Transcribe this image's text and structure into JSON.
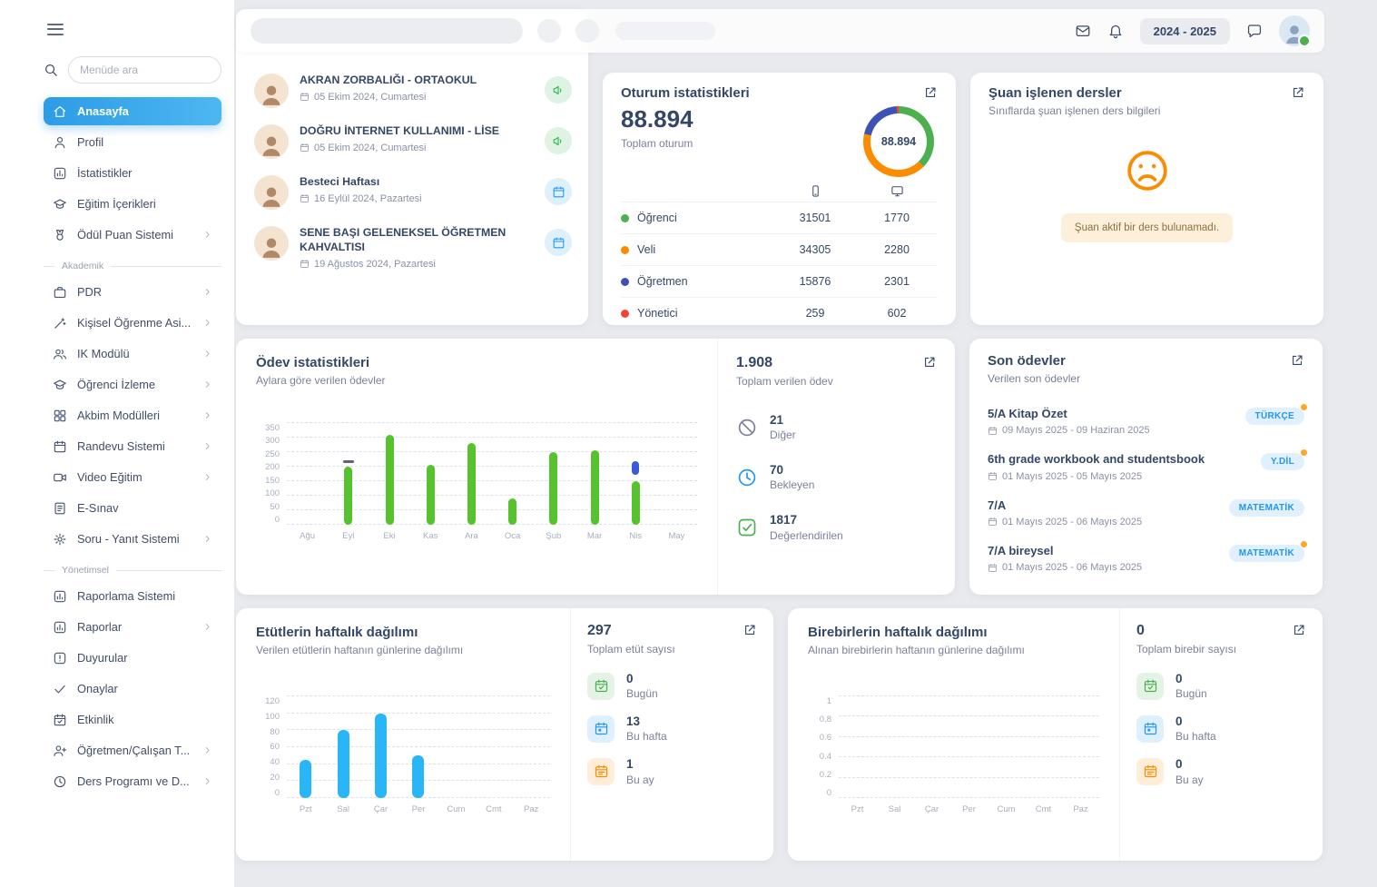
{
  "header": {
    "school_year": "2024 - 2025"
  },
  "sidebar": {
    "search_placeholder": "Menüde ara",
    "sections": [
      {
        "label": null,
        "items": [
          {
            "label": "Anasayfa",
            "icon": "home",
            "active": true
          },
          {
            "label": "Profil",
            "icon": "user"
          },
          {
            "label": "İstatistikler",
            "icon": "chart"
          },
          {
            "label": "Eğitim İçerikleri",
            "icon": "graduation"
          },
          {
            "label": "Ödül Puan Sistemi",
            "icon": "medal",
            "arrow": true
          }
        ]
      },
      {
        "label": "Akademik",
        "items": [
          {
            "label": "PDR",
            "icon": "briefcase",
            "arrow": true
          },
          {
            "label": "Kişisel Öğrenme Asi...",
            "icon": "wand",
            "arrow": true
          },
          {
            "label": "IK Modülü",
            "icon": "users",
            "arrow": true
          },
          {
            "label": "Öğrenci İzleme",
            "icon": "graduation",
            "arrow": true
          },
          {
            "label": "Akbim Modülleri",
            "icon": "grid",
            "arrow": true
          },
          {
            "label": "Randevu Sistemi",
            "icon": "calendar",
            "arrow": true
          },
          {
            "label": "Video Eğitim",
            "icon": "video",
            "arrow": true
          },
          {
            "label": "E-Sınav",
            "icon": "doc"
          },
          {
            "label": "Soru - Yanıt Sistemi",
            "icon": "gear",
            "arrow": true
          }
        ]
      },
      {
        "label": "Yönetimsel",
        "items": [
          {
            "label": "Raporlama Sistemi",
            "icon": "chart"
          },
          {
            "label": "Raporlar",
            "icon": "chart",
            "arrow": true
          },
          {
            "label": "Duyurular",
            "icon": "alert"
          },
          {
            "label": "Onaylar",
            "icon": "check"
          },
          {
            "label": "Etkinlik",
            "icon": "calendar-check"
          },
          {
            "label": "Öğretmen/Çalışan T...",
            "icon": "user-plus",
            "arrow": true
          },
          {
            "label": "Ders Programı ve D...",
            "icon": "clock",
            "arrow": true
          }
        ]
      }
    ]
  },
  "events": {
    "items": [
      {
        "title": "AKRAN ZORBALIĞI - ORTAOKUL",
        "date": "05 Ekim 2024, Cumartesi",
        "kind": "announcement"
      },
      {
        "title": "DOĞRU İNTERNET KULLANIMI - LİSE",
        "date": "05 Ekim 2024, Cumartesi",
        "kind": "announcement"
      },
      {
        "title": "Besteci Haftası",
        "date": "16 Eylül 2024, Pazartesi",
        "kind": "event"
      },
      {
        "title": "SENE BAŞI GELENEKSEL ÖĞRETMEN KAHVALTISI",
        "date": "19 Ağustos 2024, Pazartesi",
        "kind": "event"
      }
    ]
  },
  "session": {
    "title": "Oturum istatistikleri",
    "total": "88.894",
    "total_label": "Toplam oturum",
    "donut_center": "88.894",
    "rows": [
      {
        "label": "Öğrenci",
        "color": "#4caf50",
        "mobile": "31501",
        "web": "1770"
      },
      {
        "label": "Veli",
        "color": "#fb8c00",
        "mobile": "34305",
        "web": "2280"
      },
      {
        "label": "Öğretmen",
        "color": "#3f51b5",
        "mobile": "15876",
        "web": "2301"
      },
      {
        "label": "Yönetici",
        "color": "#f44336",
        "mobile": "259",
        "web": "602"
      }
    ]
  },
  "lessons": {
    "title": "Şuan işlenen dersler",
    "subtitle": "Sınıflarda şuan işlenen ders bilgileri",
    "empty_message": "Şuan aktif bir ders bulunamadı."
  },
  "homework": {
    "title": "Ödev istatistikleri",
    "subtitle": "Aylara göre verilen ödevler",
    "chart": {
      "type": "bar",
      "ymax": 350,
      "ticks": [
        0,
        50,
        100,
        150,
        200,
        250,
        300,
        350
      ],
      "categories": [
        "Ağu",
        "Eyl",
        "Eki",
        "Kas",
        "Ara",
        "Oca",
        "Şub",
        "Mar",
        "Nis",
        "May"
      ],
      "values": [
        0,
        200,
        310,
        205,
        280,
        90,
        250,
        255,
        150,
        0
      ],
      "bar_color": "#56c22d",
      "markers": [
        {
          "category": "Eyl",
          "type": "dash",
          "value": 212
        },
        {
          "category": "Nis",
          "type": "segment",
          "from": 172,
          "to": 218
        }
      ]
    },
    "summary": {
      "total": "1.908",
      "total_label": "Toplam verilen ödev",
      "stats": [
        {
          "value": "21",
          "label": "Diğer",
          "icon": "slash",
          "color": "#7b809a"
        },
        {
          "value": "70",
          "label": "Bekleyen",
          "icon": "clock",
          "color": "#2196f3"
        },
        {
          "value": "1817",
          "label": "Değerlendirilen",
          "icon": "check-square",
          "color": "#4caf50"
        }
      ]
    }
  },
  "recent": {
    "title": "Son ödevler",
    "subtitle": "Verilen son ödevler",
    "items": [
      {
        "title": "5/A Kitap Özet",
        "dates": "09 Mayıs 2025 - 09 Haziran 2025",
        "badge": "TÜRKÇE",
        "notify_dot": true
      },
      {
        "title": "6th grade workbook and studentsbook",
        "dates": "01 Mayıs 2025 - 05 Mayıs 2025",
        "badge": "Y.DİL",
        "notify_dot": true
      },
      {
        "title": "7/A",
        "dates": "01 Mayıs 2025 - 06 Mayıs 2025",
        "badge": "MATEMATİK",
        "notify_dot": false
      },
      {
        "title": "7/A bireysel",
        "dates": "01 Mayıs 2025 - 06 Mayıs 2025",
        "badge": "MATEMATİK",
        "notify_dot": true
      }
    ]
  },
  "etut": {
    "title": "Etütlerin haftalık dağılımı",
    "subtitle": "Verilen etütlerin haftanın günlerine dağılımı",
    "chart": {
      "type": "bar",
      "ymax": 120,
      "ticks": [
        0,
        20,
        40,
        60,
        80,
        100,
        120
      ],
      "categories": [
        "Pzt",
        "Sal",
        "Çar",
        "Per",
        "Cum",
        "Cmt",
        "Paz"
      ],
      "values": [
        45,
        80,
        100,
        50,
        0,
        0,
        0
      ],
      "bar_color": "#29b6f6",
      "markers": []
    },
    "summary": {
      "total": "297",
      "total_label": "Toplam etüt sayısı",
      "stats": [
        {
          "value": "0",
          "label": "Bugün",
          "icon": "calendar-check",
          "color": "#4caf50"
        },
        {
          "value": "13",
          "label": "Bu hafta",
          "icon": "calendar-day",
          "color": "#2196f3"
        },
        {
          "value": "1",
          "label": "Bu ay",
          "icon": "calendar-month",
          "color": "#fb8c00"
        }
      ]
    }
  },
  "birebir": {
    "title": "Birebirlerin haftalık dağılımı",
    "subtitle": "Alınan birebirlerin haftanın günlerine dağılımı",
    "chart": {
      "type": "bar",
      "ymax": 1,
      "ticks": [
        0,
        0.2,
        0.4,
        0.6,
        0.8,
        1
      ],
      "categories": [
        "Pzt",
        "Sal",
        "Çar",
        "Per",
        "Cum",
        "Cmt",
        "Paz"
      ],
      "values": [
        0,
        0,
        0,
        0,
        0,
        0,
        0
      ],
      "bar_color": "#29b6f6",
      "markers": []
    },
    "summary": {
      "total": "0",
      "total_label": "Toplam birebir sayısı",
      "stats": [
        {
          "value": "0",
          "label": "Bugün",
          "icon": "calendar-check",
          "color": "#4caf50"
        },
        {
          "value": "0",
          "label": "Bu hafta",
          "icon": "calendar-day",
          "color": "#2196f3"
        },
        {
          "value": "0",
          "label": "Bu ay",
          "icon": "calendar-month",
          "color": "#fb8c00"
        }
      ]
    }
  }
}
